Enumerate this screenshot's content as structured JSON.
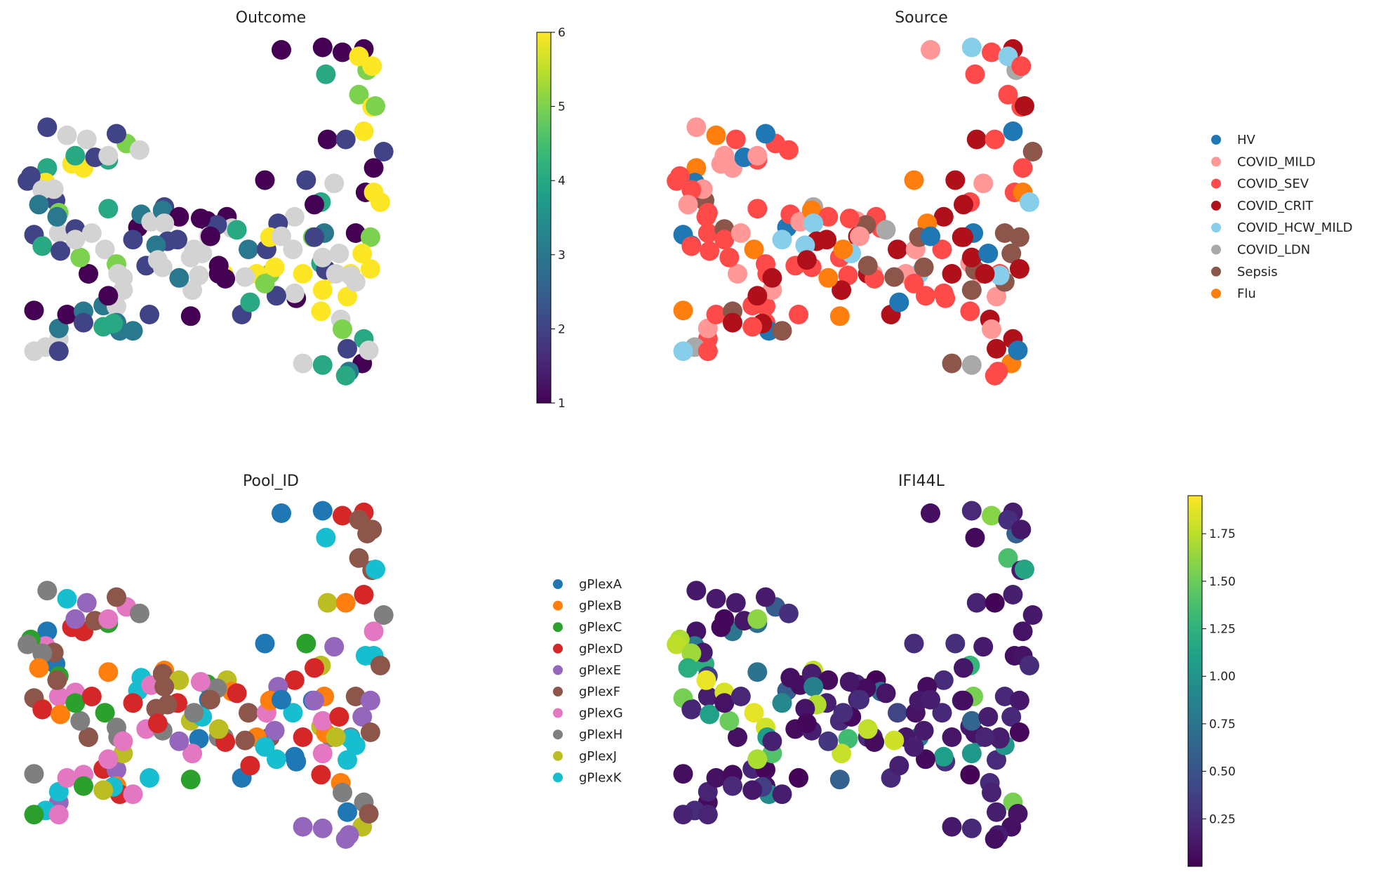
{
  "chart_data": [
    {
      "type": "scatter",
      "title": "Outcome",
      "color_mode": "continuous",
      "colormap": "viridis",
      "colorbar": {
        "min": 1,
        "max": 6,
        "ticks": [
          "1",
          "2",
          "3",
          "4",
          "5",
          "6"
        ]
      },
      "na_color": "#d3d3d3",
      "axes": "hidden",
      "points": [
        [
          160,
          25,
          1
        ],
        [
          185,
          22,
          1
        ],
        [
          210,
          24,
          1
        ],
        [
          197,
          28,
          1
        ],
        [
          187,
          55,
          4
        ],
        [
          212,
          50,
          5
        ],
        [
          207,
          33,
          6
        ],
        [
          215,
          45,
          6
        ],
        [
          207,
          80,
          5
        ],
        [
          215,
          95,
          6
        ],
        [
          210,
          125,
          6
        ],
        [
          217,
          94,
          5
        ],
        [
          188,
          135,
          1
        ],
        [
          199,
          135,
          2
        ],
        [
          222,
          150,
          2
        ],
        [
          216,
          170,
          1
        ],
        [
          211,
          200,
          1
        ],
        [
          192,
          189,
          null
        ],
        [
          216,
          200,
          6
        ],
        [
          220,
          212,
          6
        ],
        [
          205,
          250,
          1
        ],
        [
          214,
          255,
          5
        ],
        [
          186,
          250,
          3
        ],
        [
          179,
          255,
          5
        ],
        [
          209,
          275,
          6
        ],
        [
          184,
          287,
          4
        ],
        [
          153,
          300,
          5
        ],
        [
          145,
          300,
          6
        ],
        [
          138,
          304,
          null
        ],
        [
          125,
          300,
          6
        ],
        [
          110,
          302,
          null
        ],
        [
          106,
          320,
          null
        ],
        [
          169,
          330,
          1
        ],
        [
          184,
          346,
          6
        ],
        [
          196,
          356,
          null
        ],
        [
          197,
          368,
          5
        ],
        [
          210,
          380,
          4
        ],
        [
          209,
          410,
          1
        ],
        [
          201,
          420,
          3
        ],
        [
          199,
          425,
          4
        ],
        [
          185,
          412,
          4
        ],
        [
          173,
          410,
          null
        ],
        [
          200,
          392,
          2
        ],
        [
          213,
          394,
          null
        ],
        [
          25,
          380,
          null
        ],
        [
          17,
          390,
          null
        ],
        [
          10,
          395,
          null
        ],
        [
          25,
          367,
          3
        ],
        [
          30,
          350,
          1
        ],
        [
          10,
          345,
          1
        ],
        [
          40,
          346,
          3
        ],
        [
          52,
          339,
          3
        ],
        [
          60,
          340,
          null
        ],
        [
          60,
          360,
          3
        ],
        [
          62,
          370,
          3
        ],
        [
          70,
          370,
          3
        ],
        [
          80,
          350,
          2
        ],
        [
          25,
          395,
          2
        ],
        [
          40,
          360,
          2
        ],
        [
          58,
          361,
          4
        ],
        [
          52,
          365,
          4
        ],
        [
          105,
          280,
          null
        ],
        [
          98,
          305,
          3
        ],
        [
          105,
          352,
          1
        ],
        [
          64,
          320,
          null
        ],
        [
          55,
          327,
          1
        ],
        [
          43,
          300,
          1
        ],
        [
          53,
          270,
          null
        ],
        [
          60,
          288,
          5
        ],
        [
          61,
          300,
          null
        ],
        [
          64,
          305,
          null
        ],
        [
          78,
          290,
          2
        ],
        [
          88,
          292,
          null
        ],
        [
          73,
          243,
          1
        ],
        [
          70,
          258,
          2
        ],
        [
          75,
          227,
          3
        ],
        [
          81,
          236,
          null
        ],
        [
          89,
          218,
          2
        ],
        [
          88,
          222,
          3
        ],
        [
          98,
          230,
          1
        ],
        [
          115,
          235,
          1
        ],
        [
          127,
          230,
          1
        ],
        [
          130,
          244,
          null
        ],
        [
          116,
          254,
          null
        ],
        [
          112,
          275,
          null
        ],
        [
          122,
          300,
          1
        ],
        [
          140,
          270,
          3
        ],
        [
          151,
          270,
          2
        ],
        [
          167,
          270,
          null
        ],
        [
          173,
          300,
          6
        ],
        [
          190,
          300,
          6
        ],
        [
          202,
          300,
          6
        ],
        [
          187,
          295,
          2
        ],
        [
          185,
          280,
          null
        ],
        [
          180,
          255,
          2
        ],
        [
          185,
          320,
          6
        ],
        [
          168,
          324,
          null
        ],
        [
          156,
          292,
          6
        ],
        [
          157,
          327,
          2
        ],
        [
          150,
          312,
          5
        ],
        [
          136,
          350,
          2
        ],
        [
          141,
          335,
          4
        ],
        [
          126,
          306,
          1
        ],
        [
          122,
          290,
          1
        ],
        [
          200,
          328,
          6
        ],
        [
          205,
          310,
          null
        ],
        [
          214,
          294,
          6
        ],
        [
          202,
          302,
          null
        ],
        [
          195,
          275,
          null
        ],
        [
          193,
          300,
          null
        ],
        [
          150,
          185,
          1
        ],
        [
          175,
          185,
          2
        ],
        [
          184,
          212,
          4
        ],
        [
          180,
          215,
          1
        ],
        [
          168,
          230,
          null
        ],
        [
          158,
          238,
          2
        ],
        [
          153,
          255,
          6
        ],
        [
          160,
          254,
          null
        ],
        [
          133,
          246,
          4
        ],
        [
          121,
          240,
          2
        ],
        [
          111,
          232,
          1
        ],
        [
          117,
          254,
          1
        ],
        [
          107,
          270,
          null
        ],
        [
          97,
          258,
          2
        ],
        [
          89,
          238,
          null
        ],
        [
          91,
          260,
          2
        ],
        [
          84,
          265,
          3
        ],
        [
          85,
          283,
          null
        ],
        [
          55,
          220,
          4
        ],
        [
          40,
          170,
          6
        ],
        [
          33,
          165,
          6
        ],
        [
          17,
          206,
          2
        ],
        [
          23,
          210,
          2
        ],
        [
          25,
          225,
          5
        ],
        [
          25,
          250,
          null
        ],
        [
          15,
          265,
          null
        ],
        [
          10,
          252,
          2
        ],
        [
          15,
          266,
          4
        ],
        [
          26,
          272,
          2
        ],
        [
          38,
          280,
          5
        ],
        [
          55,
          160,
          4
        ],
        [
          47,
          157,
          2
        ],
        [
          35,
          155,
          4
        ],
        [
          18,
          170,
          4
        ],
        [
          17,
          188,
          6
        ],
        [
          22,
          196,
          null
        ],
        [
          8,
          180,
          2
        ],
        [
          6,
          186,
          2
        ],
        [
          15,
          197,
          null
        ],
        [
          13,
          215,
          3
        ],
        [
          24,
          230,
          3
        ],
        [
          35,
          245,
          2
        ],
        [
          35,
          258,
          null
        ],
        [
          45,
          250,
          null
        ],
        [
          18,
          120,
          2
        ],
        [
          30,
          130,
          null
        ],
        [
          42,
          135,
          null
        ],
        [
          55,
          155,
          null
        ],
        [
          66,
          140,
          5
        ],
        [
          60,
          128,
          2
        ],
        [
          74,
          148,
          null
        ]
      ]
    },
    {
      "type": "scatter",
      "title": "Source",
      "color_mode": "categorical",
      "legend": [
        {
          "name": "HV",
          "color": "#1f77b4"
        },
        {
          "name": "COVID_MILD",
          "color": "#ff9896"
        },
        {
          "name": "COVID_SEV",
          "color": "#ff4a4a"
        },
        {
          "name": "COVID_CRIT",
          "color": "#b0101a"
        },
        {
          "name": "COVID_HCW_MILD",
          "color": "#87ceeb"
        },
        {
          "name": "COVID_LDN",
          "color": "#a9a9a9"
        },
        {
          "name": "Sepsis",
          "color": "#8c564b"
        },
        {
          "name": "Flu",
          "color": "#ff7f0e"
        }
      ],
      "legend_position": "right",
      "axes": "hidden",
      "points_source": "same_layout_as_outcome"
    },
    {
      "type": "scatter",
      "title": "Pool_ID",
      "color_mode": "categorical",
      "legend": [
        {
          "name": "gPlexA",
          "color": "#1f77b4"
        },
        {
          "name": "gPlexB",
          "color": "#ff7f0e"
        },
        {
          "name": "gPlexC",
          "color": "#2ca02c"
        },
        {
          "name": "gPlexD",
          "color": "#d62728"
        },
        {
          "name": "gPlexE",
          "color": "#9467bd"
        },
        {
          "name": "gPlexF",
          "color": "#8c564b"
        },
        {
          "name": "gPlexG",
          "color": "#e377c2"
        },
        {
          "name": "gPlexH",
          "color": "#7f7f7f"
        },
        {
          "name": "gPlexJ",
          "color": "#bcbd22"
        },
        {
          "name": "gPlexK",
          "color": "#17becf"
        }
      ],
      "legend_position": "right",
      "axes": "hidden",
      "points_source": "same_layout_as_outcome"
    },
    {
      "type": "scatter",
      "title": "IFI44L",
      "color_mode": "continuous",
      "colormap": "viridis",
      "colorbar": {
        "min": 0.0,
        "max": 1.95,
        "ticks": [
          "0.25",
          "0.50",
          "0.75",
          "1.00",
          "1.25",
          "1.50",
          "1.75"
        ]
      },
      "axes": "hidden",
      "points_source": "same_layout_as_outcome"
    }
  ]
}
